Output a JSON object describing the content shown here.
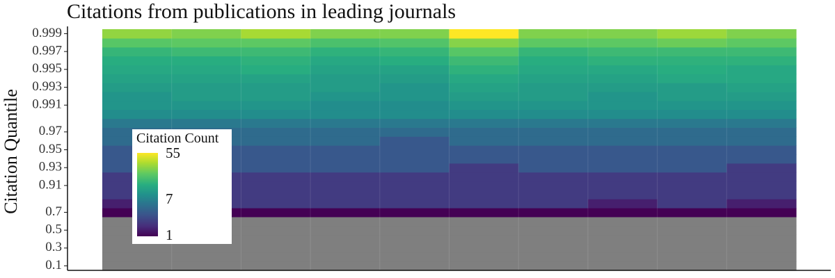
{
  "chart_data": {
    "type": "heatmap",
    "title": "Citations from publications in leading journals",
    "xlabel": "",
    "ylabel": "Citation Quantile",
    "x_columns": 10,
    "y_categories": [
      "0.1",
      "0.2",
      "0.3",
      "0.4",
      "0.5",
      "0.6",
      "0.7",
      "0.8",
      "0.9",
      "0.91",
      "0.92",
      "0.93",
      "0.94",
      "0.95",
      "0.96",
      "0.97",
      "0.98",
      "0.99",
      "0.991",
      "0.992",
      "0.993",
      "0.994",
      "0.995",
      "0.996",
      "0.997",
      "0.998",
      "0.999"
    ],
    "y_tick_labels": [
      "0.1",
      "0.3",
      "0.5",
      "0.7",
      "0.91",
      "0.93",
      "0.95",
      "0.97",
      "0.991",
      "0.993",
      "0.995",
      "0.997",
      "0.999"
    ],
    "values": [
      [
        0,
        0,
        0,
        0,
        0,
        0,
        0,
        0,
        0,
        0
      ],
      [
        0,
        0,
        0,
        0,
        0,
        0,
        0,
        0,
        0,
        0
      ],
      [
        0,
        0,
        0,
        0,
        0,
        0,
        0,
        0,
        0,
        0
      ],
      [
        0,
        0,
        0,
        0,
        0,
        0,
        0,
        0,
        0,
        0
      ],
      [
        0,
        0,
        0,
        0,
        0,
        0,
        0,
        0,
        0,
        0
      ],
      [
        0,
        0,
        0,
        0,
        0,
        0,
        0,
        0,
        0,
        0
      ],
      [
        1,
        1,
        1,
        1,
        1,
        1,
        1,
        1,
        1,
        1
      ],
      [
        1.4,
        2,
        2,
        2,
        2,
        2,
        2,
        1.4,
        2,
        1.4
      ],
      [
        2,
        2,
        2,
        2,
        2,
        2,
        2,
        2,
        2,
        2
      ],
      [
        2,
        2,
        2,
        2,
        2,
        2,
        2,
        2,
        2,
        2
      ],
      [
        2,
        2,
        2,
        2,
        2,
        2,
        2,
        2,
        2,
        2
      ],
      [
        3,
        3,
        3,
        3,
        3,
        2,
        3,
        3,
        3,
        2
      ],
      [
        3,
        3,
        3,
        3,
        3,
        3,
        3,
        3,
        3,
        3
      ],
      [
        3,
        3,
        3,
        3,
        3,
        3,
        3,
        3,
        3,
        3
      ],
      [
        4,
        4,
        4,
        4,
        3,
        4,
        4,
        4,
        4,
        4
      ],
      [
        4,
        4,
        4,
        4,
        4,
        4,
        4,
        4,
        4,
        4
      ],
      [
        5,
        5,
        5,
        5,
        5,
        5,
        5,
        5,
        5,
        5
      ],
      [
        7,
        7,
        7,
        7,
        7,
        7,
        7,
        7,
        7,
        7
      ],
      [
        8,
        8,
        8,
        7,
        7,
        8,
        8,
        8,
        8,
        8
      ],
      [
        8,
        9,
        9,
        8,
        8,
        9,
        9,
        8,
        9,
        9
      ],
      [
        9,
        9,
        9,
        9,
        8,
        10,
        9,
        9,
        9,
        10
      ],
      [
        10,
        10,
        10,
        9,
        9,
        11,
        10,
        10,
        11,
        11
      ],
      [
        11,
        11,
        12,
        10,
        10,
        13,
        11,
        11,
        12,
        11
      ],
      [
        12,
        12,
        13,
        11,
        12,
        15,
        12,
        13,
        13,
        13
      ],
      [
        14,
        15,
        15,
        13,
        14,
        19,
        14,
        15,
        15,
        15
      ],
      [
        19,
        20,
        20,
        17,
        18,
        26,
        20,
        20,
        22,
        20
      ],
      [
        28,
        25,
        32,
        25,
        25,
        55,
        25,
        25,
        30,
        25
      ]
    ],
    "color_scale": {
      "name": "viridis",
      "scale": "log",
      "domain": [
        1,
        55
      ],
      "stops": [
        "#440154",
        "#472d7b",
        "#3b528b",
        "#2c728e",
        "#21918c",
        "#28ae80",
        "#5ec962",
        "#addc30",
        "#fde725"
      ],
      "na_color": "#7f7f7f"
    },
    "legend": {
      "title": "Citation Count",
      "labels": [
        "55",
        "7",
        "1"
      ],
      "position": "bottom-left inside"
    },
    "grid": false
  }
}
